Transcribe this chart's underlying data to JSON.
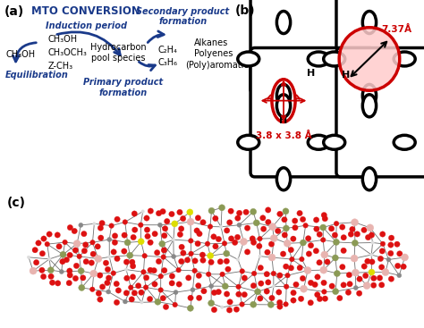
{
  "panel_a_label": "(a)",
  "panel_b_label": "(b)",
  "panel_c_label": "(c)",
  "mto_title": "MTO CONVERSION",
  "text_color": "#1a3a8a",
  "black": "#000000",
  "red": "#cc0000",
  "bg_color": "#ffffff",
  "induction_period": "Induction period",
  "equilibration": "Equilibration",
  "primary_product": "Primary product\nformation",
  "secondary_product": "Secondary product\nformation",
  "hydrocarbon_pool": "Hydrocarbon\npool species",
  "ch3oh_left": "CH₃OH",
  "ch3oh_mid1": "CH₃OH",
  "ch3och3": "CH₃OCH₃",
  "z_ch3": "Z-CH₃",
  "c2h4": "C₂H₄",
  "c3h6": "C₃H₆",
  "alkanes": "Alkanes",
  "polyenes": "Polyenes",
  "polyaromatics": "(Poly)aromatics",
  "dim_737": "7.37Å",
  "dim_38": "3.8 x 3.8 Å"
}
